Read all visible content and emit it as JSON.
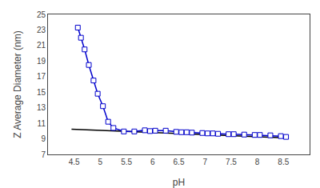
{
  "chart_data": {
    "type": "line",
    "xlabel": "pH",
    "ylabel": "Z Average Diameter (nm)",
    "series": [
      {
        "x": [
          4.45,
          8.6
        ],
        "values": [
          10.25,
          9.1
        ],
        "color": "#000000",
        "line_style": "solid"
      },
      {
        "x": [
          4.57,
          4.63,
          4.7,
          4.78,
          4.87,
          4.95,
          5.05,
          5.15,
          5.25,
          5.45,
          5.65,
          5.85,
          5.95,
          6.05,
          6.25,
          6.45,
          6.55,
          6.65,
          6.75,
          6.95,
          7.05,
          7.15,
          7.25,
          7.45,
          7.55,
          7.75,
          7.95,
          8.05,
          8.25,
          8.45,
          8.55
        ],
        "values": [
          23.3,
          22.0,
          20.5,
          18.5,
          16.5,
          14.8,
          13.2,
          11.2,
          10.4,
          9.95,
          9.95,
          10.1,
          10.0,
          10.05,
          10.05,
          9.9,
          9.85,
          9.85,
          9.8,
          9.75,
          9.7,
          9.7,
          9.65,
          9.6,
          9.6,
          9.55,
          9.5,
          9.5,
          9.45,
          9.35,
          9.25
        ],
        "color": "#0000CC",
        "marker": "square",
        "line_style": "solid"
      }
    ],
    "xlim": [
      4.0,
      9.0
    ],
    "xticks": [
      4.5,
      5,
      5.5,
      6,
      6.5,
      7,
      7.5,
      8,
      8.5
    ],
    "ylim": [
      7,
      25
    ],
    "yticks": [
      7,
      9,
      11,
      13,
      15,
      17,
      19,
      21,
      23,
      25
    ],
    "grid": false
  }
}
